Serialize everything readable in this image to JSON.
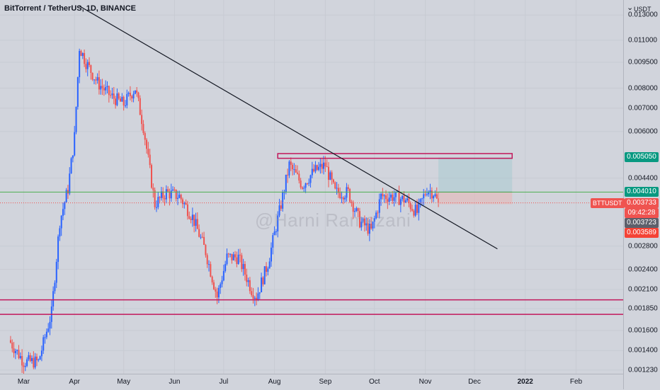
{
  "header": {
    "title": "BitTorrent / TetherUS, 1D, BINANCE"
  },
  "watermark": "@Harni Ramezani",
  "price_axis": {
    "menu": "⌄",
    "unit": "USDT",
    "ticks": [
      "0.013000",
      "0.011000",
      "0.009500",
      "0.008000",
      "0.007000",
      "0.006000",
      "0.004400",
      "0.002800",
      "0.002400",
      "0.002100",
      "0.001850",
      "0.001600",
      "0.001400",
      "0.001230"
    ],
    "labels": {
      "target": "0.005050",
      "entry": "0.004010",
      "current": "0.003733",
      "countdown": "09:42:28",
      "stop_upper": "0.003723",
      "stop_lower": "0.003589"
    },
    "symbol": "BTTUSDT"
  },
  "time_axis": {
    "ticks": [
      {
        "label": "Mar",
        "bold": false
      },
      {
        "label": "Apr",
        "bold": false
      },
      {
        "label": "May",
        "bold": false
      },
      {
        "label": "Jun",
        "bold": false
      },
      {
        "label": "Jul",
        "bold": false
      },
      {
        "label": "Aug",
        "bold": false
      },
      {
        "label": "Sep",
        "bold": false
      },
      {
        "label": "Oct",
        "bold": false
      },
      {
        "label": "Nov",
        "bold": false
      },
      {
        "label": "Dec",
        "bold": false
      },
      {
        "label": "2022",
        "bold": true
      },
      {
        "label": "Feb",
        "bold": false
      }
    ]
  },
  "colors": {
    "up": "#2962ff",
    "down": "#ef5350",
    "trendline": "#131722",
    "level": "#c2185b",
    "entry_line": "#4caf50",
    "target_zone": "#a9cbd1",
    "stop_zone": "#e5b8b8",
    "target_label": "#089981",
    "current_label": "#ef5350",
    "stop_upper_label": "#5d606b",
    "stop_lower_label": "#f44336"
  },
  "chart_data": {
    "type": "candlestick",
    "symbol": "BTTUSDT",
    "interval": "1D",
    "scale": "log",
    "ylim": [
      0.0012,
      0.0141
    ],
    "x_range": [
      "2021-02-18",
      "2022-02-28"
    ],
    "series": [
      {
        "closes": [
          {
            "date": "2021-02-20",
            "close": 0.0015
          },
          {
            "date": "2021-03-01",
            "close": 0.0013
          },
          {
            "date": "2021-03-10",
            "close": 0.0013
          },
          {
            "date": "2021-03-18",
            "close": 0.0018
          },
          {
            "date": "2021-03-23",
            "close": 0.0033
          },
          {
            "date": "2021-03-28",
            "close": 0.0041
          },
          {
            "date": "2021-04-01",
            "close": 0.0058
          },
          {
            "date": "2021-04-04",
            "close": 0.0105
          },
          {
            "date": "2021-04-08",
            "close": 0.0095
          },
          {
            "date": "2021-04-15",
            "close": 0.0083
          },
          {
            "date": "2021-04-23",
            "close": 0.0076
          },
          {
            "date": "2021-05-01",
            "close": 0.0072
          },
          {
            "date": "2021-05-08",
            "close": 0.008
          },
          {
            "date": "2021-05-13",
            "close": 0.0062
          },
          {
            "date": "2021-05-20",
            "close": 0.0037
          },
          {
            "date": "2021-05-27",
            "close": 0.004
          },
          {
            "date": "2021-06-04",
            "close": 0.0039
          },
          {
            "date": "2021-06-12",
            "close": 0.0034
          },
          {
            "date": "2021-06-20",
            "close": 0.0027
          },
          {
            "date": "2021-06-27",
            "close": 0.002
          },
          {
            "date": "2021-07-03",
            "close": 0.0026
          },
          {
            "date": "2021-07-10",
            "close": 0.0026
          },
          {
            "date": "2021-07-18",
            "close": 0.0021
          },
          {
            "date": "2021-07-21",
            "close": 0.002
          },
          {
            "date": "2021-07-28",
            "close": 0.0025
          },
          {
            "date": "2021-08-05",
            "close": 0.0037
          },
          {
            "date": "2021-08-10",
            "close": 0.0048
          },
          {
            "date": "2021-08-18",
            "close": 0.0042
          },
          {
            "date": "2021-08-25",
            "close": 0.0046
          },
          {
            "date": "2021-09-01",
            "close": 0.0048
          },
          {
            "date": "2021-09-07",
            "close": 0.004
          },
          {
            "date": "2021-09-15",
            "close": 0.004
          },
          {
            "date": "2021-09-22",
            "close": 0.0033
          },
          {
            "date": "2021-09-29",
            "close": 0.0031
          },
          {
            "date": "2021-10-05",
            "close": 0.0039
          },
          {
            "date": "2021-10-12",
            "close": 0.0039
          },
          {
            "date": "2021-10-20",
            "close": 0.0038
          },
          {
            "date": "2021-10-27",
            "close": 0.0035
          },
          {
            "date": "2021-11-02",
            "close": 0.0041
          },
          {
            "date": "2021-11-06",
            "close": 0.004
          },
          {
            "date": "2021-11-09",
            "close": 0.0037
          }
        ]
      }
    ],
    "annotations": {
      "trendline": {
        "from": {
          "date": "2021-04-04",
          "price": 0.0138
        },
        "to": {
          "date": "2021-12-15",
          "price": 0.00275
        }
      },
      "resistance_box": {
        "from_date": "2021-08-03",
        "to_date": "2021-12-24",
        "low": 0.00502,
        "high": 0.00518
      },
      "support_levels": [
        0.00196,
        0.00178
      ],
      "position": {
        "from_date": "2021-11-09",
        "to_date": "2021-12-24",
        "entry": 0.00401,
        "target": 0.00505,
        "stop": 0.0037
      }
    }
  }
}
